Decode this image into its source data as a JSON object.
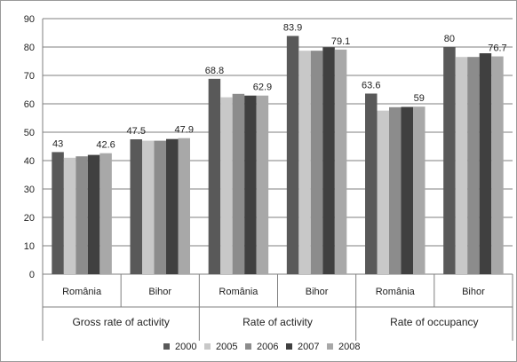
{
  "chart_data": {
    "type": "bar",
    "ylim": [
      0,
      90
    ],
    "y_ticks": [
      "0",
      "10",
      "20",
      "30",
      "40",
      "50",
      "60",
      "70",
      "80",
      "90"
    ],
    "grid": true,
    "legend_position": "bottom",
    "groups": [
      {
        "label": "Gross rate of  activity",
        "categories": [
          "România",
          "Bihor"
        ]
      },
      {
        "label": "Rate of activity",
        "categories": [
          "România",
          "Bihor"
        ]
      },
      {
        "label": "Rate of occupancy",
        "categories": [
          "România",
          "Bihor"
        ]
      }
    ],
    "categories": [
      "România",
      "Bihor",
      "România",
      "Bihor",
      "România",
      "Bihor"
    ],
    "series": [
      {
        "name": "2000",
        "color": "#595959",
        "values": [
          43,
          47.5,
          68.8,
          83.9,
          63.6,
          80
        ]
      },
      {
        "name": "2005",
        "color": "#c8c8c8",
        "values": [
          41,
          47,
          62.3,
          78.7,
          57.6,
          76.5
        ]
      },
      {
        "name": "2006",
        "color": "#8c8c8c",
        "values": [
          41.5,
          47,
          63.5,
          78.7,
          58.8,
          76.5
        ]
      },
      {
        "name": "2007",
        "color": "#404040",
        "values": [
          42,
          47.6,
          62.9,
          79.9,
          58.9,
          77.8
        ]
      },
      {
        "name": "2008",
        "color": "#a8a8a8",
        "values": [
          42.6,
          47.9,
          62.9,
          79.1,
          59,
          76.7
        ]
      }
    ],
    "data_labels": [
      {
        "category_index": 0,
        "series_index": 0,
        "text": "43"
      },
      {
        "category_index": 0,
        "series_index": 4,
        "text": "42.6"
      },
      {
        "category_index": 1,
        "series_index": 0,
        "text": "47.5"
      },
      {
        "category_index": 1,
        "series_index": 4,
        "text": "47.9"
      },
      {
        "category_index": 2,
        "series_index": 0,
        "text": "68.8"
      },
      {
        "category_index": 2,
        "series_index": 4,
        "text": "62.9"
      },
      {
        "category_index": 3,
        "series_index": 0,
        "text": "83.9"
      },
      {
        "category_index": 3,
        "series_index": 4,
        "text": "79.1"
      },
      {
        "category_index": 4,
        "series_index": 0,
        "text": "63.6"
      },
      {
        "category_index": 4,
        "series_index": 4,
        "text": "59"
      },
      {
        "category_index": 5,
        "series_index": 0,
        "text": "80"
      },
      {
        "category_index": 5,
        "series_index": 4,
        "text": "76.7"
      }
    ]
  }
}
